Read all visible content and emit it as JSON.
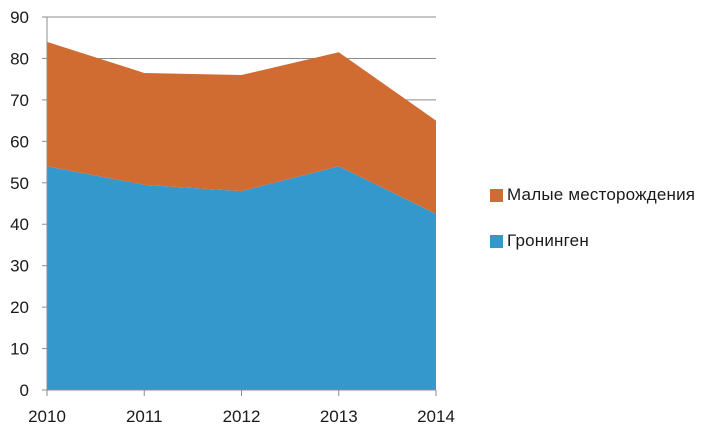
{
  "chart_data": {
    "type": "area",
    "stacked": true,
    "x": [
      2010,
      2011,
      2012,
      2013,
      2014
    ],
    "series": [
      {
        "name": "Гронинген",
        "values": [
          54,
          49.5,
          48,
          54,
          42.5
        ],
        "color": "#3598cc"
      },
      {
        "name": "Малые месторождения",
        "values": [
          30,
          27,
          28,
          27.5,
          22.5
        ],
        "color": "#d06b32"
      }
    ],
    "ylim": [
      0,
      90
    ],
    "yticks": [
      0,
      10,
      20,
      30,
      40,
      50,
      60,
      70,
      80,
      90
    ],
    "grid": true,
    "legend_position": "right",
    "title": "",
    "xlabel": "",
    "ylabel": ""
  },
  "legend": {
    "items": [
      {
        "label": "Малые месторождения",
        "color": "#d06b32"
      },
      {
        "label": "Гронинген",
        "color": "#3598cc"
      }
    ]
  }
}
